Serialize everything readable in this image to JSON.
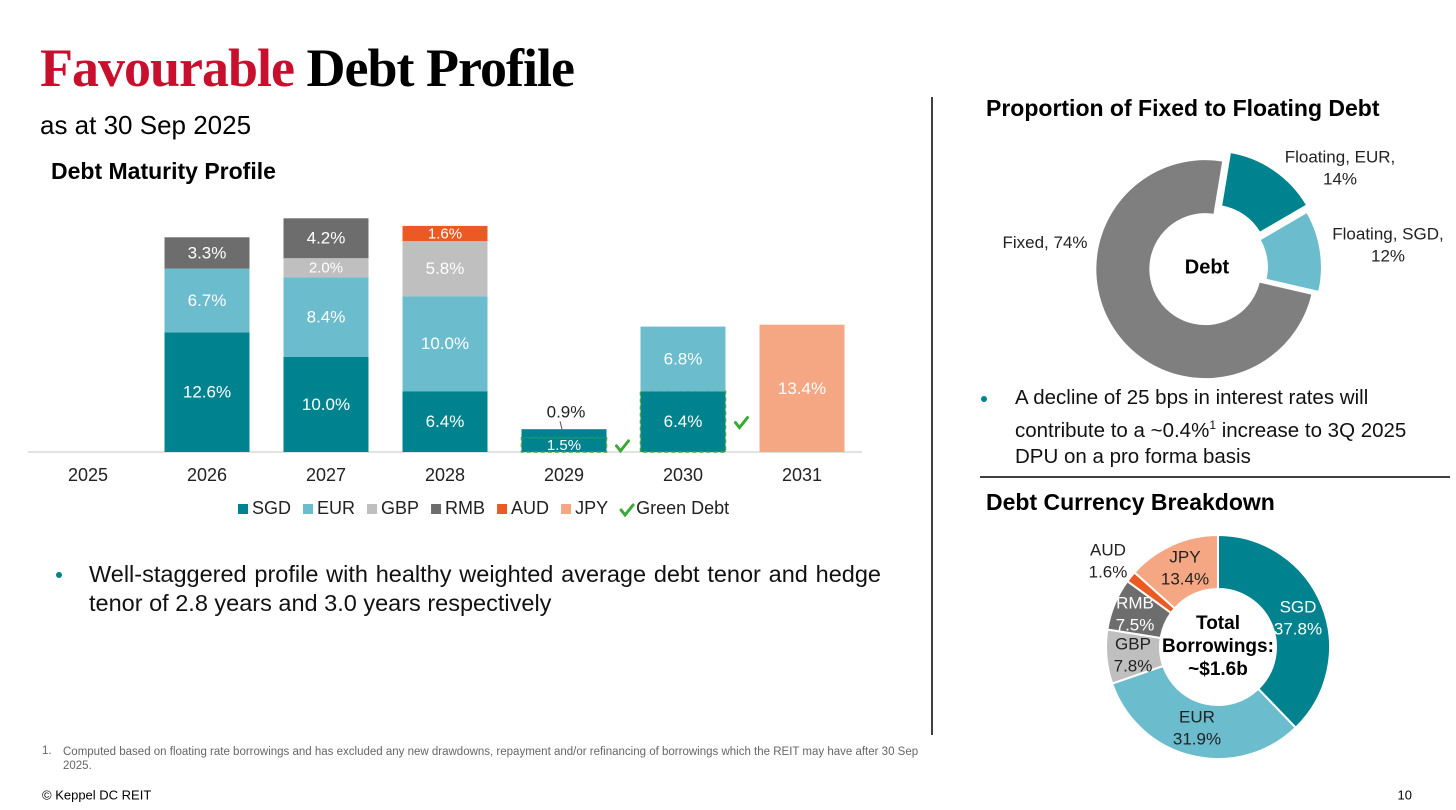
{
  "header": {
    "title": [
      "Favourable",
      "Debt Profile"
    ],
    "subtitle": "as at 30 Sep 2025"
  },
  "chart_data": [
    {
      "type": "bar",
      "stacked": true,
      "title": "Debt Maturity Profile",
      "categories": [
        "2025",
        "2026",
        "2027",
        "2028",
        "2029",
        "2030",
        "2031"
      ],
      "ylim": [
        0,
        25
      ],
      "series": [
        {
          "name": "SGD",
          "color": "#00838f",
          "values": [
            null,
            12.6,
            10.0,
            6.4,
            0.9,
            null,
            null
          ],
          "value_labels": [
            null,
            "12.6%",
            "10.0%",
            "6.4%",
            "0.9%",
            null,
            null
          ]
        },
        {
          "name": "EUR",
          "color": "#6bbccc",
          "values": [
            null,
            6.7,
            8.4,
            10.0,
            null,
            6.8,
            null
          ],
          "value_labels": [
            null,
            "6.7%",
            "8.4%",
            "10.0%",
            null,
            "6.8%",
            null
          ]
        },
        {
          "name": "GBP",
          "color": "#bfbfbf",
          "values": [
            null,
            null,
            2.0,
            5.8,
            null,
            null,
            null
          ],
          "value_labels": [
            null,
            null,
            "2.0%",
            "5.8%",
            null,
            null,
            null
          ]
        },
        {
          "name": "RMB",
          "color": "#6d6d6d",
          "values": [
            null,
            3.3,
            4.2,
            null,
            null,
            null,
            null
          ],
          "value_labels": [
            null,
            "3.3%",
            "4.2%",
            null,
            null,
            null,
            null
          ]
        },
        {
          "name": "AUD",
          "color": "#ec5a24",
          "values": [
            null,
            null,
            null,
            1.6,
            null,
            null,
            null
          ],
          "value_labels": [
            null,
            null,
            null,
            "1.6%",
            null,
            null,
            null
          ]
        },
        {
          "name": "JPY",
          "color": "#f5a783",
          "values": [
            null,
            null,
            null,
            null,
            null,
            null,
            13.4
          ],
          "value_labels": [
            null,
            null,
            null,
            null,
            null,
            null,
            "13.4%"
          ]
        },
        {
          "name": "Green Debt",
          "color": "#00838f",
          "edge_color": "#3aa935",
          "values": [
            null,
            null,
            null,
            null,
            1.5,
            6.4,
            null
          ],
          "value_labels": [
            null,
            null,
            null,
            null,
            "1.5%",
            "6.4%",
            null
          ]
        }
      ]
    },
    {
      "type": "donut",
      "title": "Proportion of Fixed to Floating Debt",
      "center_label": "Debt",
      "categories": [
        "Fixed,",
        "Floating, EUR,",
        "Floating, SGD,"
      ],
      "values": [
        74,
        14,
        12
      ],
      "value_labels": [
        "74%",
        "14%",
        "12%"
      ],
      "colors": [
        "#7f7f7f",
        "#00838f",
        "#6bbccc"
      ]
    },
    {
      "type": "donut",
      "title": "Debt Currency Breakdown",
      "center_label": [
        "Total",
        "Borrowings:",
        "~$1.6b"
      ],
      "categories": [
        "SGD",
        "EUR",
        "GBP",
        "RMB",
        "AUD",
        "JPY"
      ],
      "values": [
        37.8,
        31.9,
        7.8,
        7.5,
        1.6,
        13.4
      ],
      "value_labels": [
        "37.8%",
        "31.9%",
        "7.8%",
        "7.5%",
        "1.6%",
        "13.4%"
      ],
      "colors": [
        "#00838f",
        "#6bbccc",
        "#bfbfbf",
        "#6d6d6d",
        "#ec5a24",
        "#f5a783"
      ]
    }
  ],
  "bullets": [
    "Well-staggered profile with healthy weighted average debt tenor and hedge tenor of 2.8 years and 3.0 years respectively"
  ],
  "note": [
    "A decline of 25 bps in interest rates will contribute to a ~0.4%",
    "1",
    " increase to 3Q 2025 DPU on a pro forma basis"
  ],
  "footnote": {
    "number": "1.",
    "text": "Computed based on floating rate borrowings and has excluded any new drawdowns, repayment and/or refinancing of borrowings which the REIT may have after 30 Sep 2025."
  },
  "footer": {
    "copyright": "© Keppel DC REIT",
    "page": "10"
  }
}
